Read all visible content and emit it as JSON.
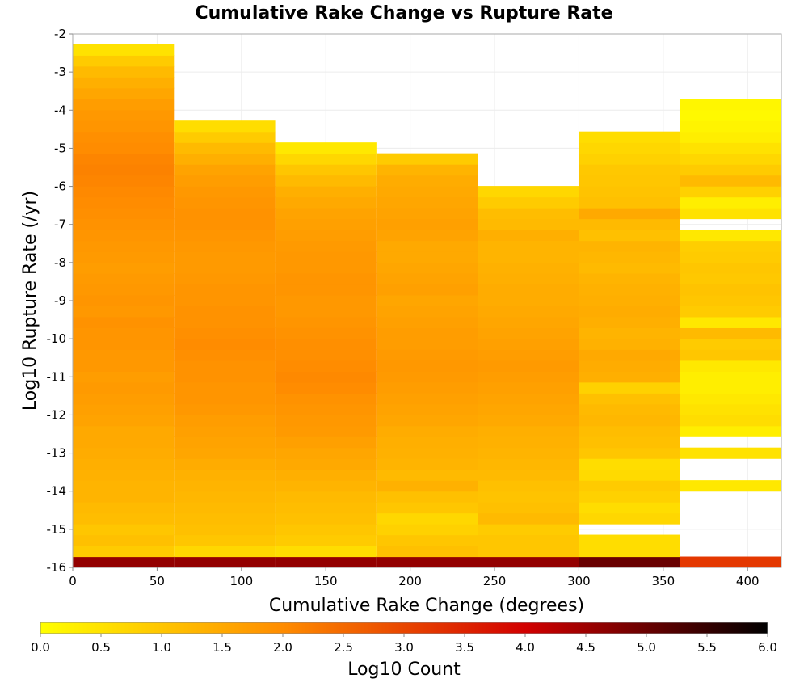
{
  "chart_data": {
    "type": "heatmap",
    "title": "Cumulative Rake Change vs Rupture Rate",
    "xlabel": "Cumulative Rake Change (degrees)",
    "ylabel": "Log10 Rupture Rate (/yr)",
    "xlim": [
      0,
      420
    ],
    "ylim": [
      -16,
      -2
    ],
    "x_ticks": [
      0,
      50,
      100,
      150,
      200,
      250,
      300,
      350,
      400
    ],
    "y_ticks": [
      -2,
      -3,
      -4,
      -5,
      -6,
      -7,
      -8,
      -9,
      -10,
      -11,
      -12,
      -13,
      -14,
      -15,
      -16
    ],
    "grid": true,
    "cell_width_deg": 60,
    "cell_height_log10": 0.286,
    "colorbar": {
      "label": "Log10 Count",
      "range": [
        0.0,
        6.0
      ],
      "ticks": [
        0.0,
        0.5,
        1.0,
        1.5,
        2.0,
        2.5,
        3.0,
        3.5,
        4.0,
        4.5,
        5.0,
        5.5,
        6.0
      ],
      "colors": [
        "#ffff00",
        "#ff8c00",
        "#d20000",
        "#000000"
      ]
    },
    "columns": [
      {
        "x_start": 0,
        "y_start": -16,
        "values": [
          4.6,
          0.9,
          1.1,
          1.0,
          1.15,
          1.2,
          1.3,
          1.3,
          1.35,
          1.4,
          1.45,
          1.5,
          1.5,
          1.6,
          1.65,
          1.7,
          1.75,
          1.7,
          1.8,
          1.8,
          1.85,
          1.85,
          1.9,
          1.8,
          1.85,
          1.8,
          1.75,
          1.7,
          1.75,
          1.8,
          1.85,
          1.9,
          1.95,
          2.0,
          2.05,
          2.1,
          2.15,
          2.1,
          2.0,
          1.95,
          1.85,
          1.8,
          1.7,
          1.55,
          1.4,
          1.2,
          0.9,
          0.5
        ]
      },
      {
        "x_start": 60,
        "y_start": -16,
        "values": [
          4.6,
          0.7,
          1.0,
          1.1,
          1.15,
          1.2,
          1.25,
          1.3,
          1.35,
          1.45,
          1.55,
          1.6,
          1.65,
          1.7,
          1.8,
          1.85,
          1.85,
          1.9,
          1.9,
          1.95,
          2.0,
          1.95,
          1.9,
          1.9,
          1.85,
          1.85,
          1.8,
          1.75,
          1.75,
          1.8,
          1.85,
          1.9,
          1.9,
          1.85,
          1.8,
          1.7,
          1.6,
          1.4,
          1.2,
          0.9,
          0.6
        ]
      },
      {
        "x_start": 120,
        "y_start": -16,
        "values": [
          4.6,
          0.6,
          0.9,
          1.0,
          1.1,
          1.15,
          1.2,
          1.3,
          1.4,
          1.5,
          1.55,
          1.65,
          1.75,
          1.8,
          1.85,
          1.9,
          2.0,
          2.05,
          2.0,
          1.95,
          1.95,
          1.9,
          1.85,
          1.8,
          1.8,
          1.85,
          1.85,
          1.8,
          1.8,
          1.75,
          1.7,
          1.65,
          1.6,
          1.5,
          1.4,
          1.2,
          1.0,
          0.7,
          0.4
        ]
      },
      {
        "x_start": 180,
        "y_start": -16,
        "values": [
          4.6,
          1.1,
          1.0,
          0.8,
          0.7,
          1.0,
          1.1,
          1.35,
          1.2,
          1.3,
          1.35,
          1.4,
          1.45,
          1.55,
          1.6,
          1.65,
          1.7,
          1.75,
          1.8,
          1.75,
          1.7,
          1.7,
          1.65,
          1.6,
          1.55,
          1.65,
          1.6,
          1.55,
          1.5,
          1.5,
          1.6,
          1.65,
          1.6,
          1.55,
          1.5,
          1.45,
          1.3,
          0.9
        ]
      },
      {
        "x_start": 240,
        "y_start": -16,
        "values": [
          4.6,
          1.0,
          1.0,
          0.9,
          1.2,
          1.1,
          1.05,
          1.1,
          1.2,
          1.25,
          1.3,
          1.35,
          1.4,
          1.5,
          1.55,
          1.6,
          1.65,
          1.7,
          1.75,
          1.7,
          1.65,
          1.6,
          1.55,
          1.5,
          1.45,
          1.45,
          1.4,
          1.35,
          1.3,
          1.3,
          1.4,
          1.2,
          1.15,
          0.9,
          0.7
        ]
      },
      {
        "x_start": 300,
        "y_start": -16,
        "values": [
          5.0,
          0.6,
          0.6,
          null,
          0.7,
          0.6,
          0.8,
          0.9,
          0.65,
          0.6,
          1.0,
          1.1,
          1.15,
          1.25,
          1.2,
          1.1,
          0.8,
          1.4,
          1.45,
          1.5,
          1.35,
          1.3,
          1.4,
          1.45,
          1.4,
          1.35,
          1.3,
          1.2,
          1.25,
          1.3,
          1.1,
          1.2,
          1.5,
          1.1,
          1.05,
          1.0,
          0.95,
          0.8,
          0.7,
          0.6
        ]
      },
      {
        "x_start": 360,
        "y_start": -16,
        "values": [
          3.2,
          null,
          null,
          null,
          null,
          null,
          null,
          0.4,
          null,
          null,
          0.5,
          null,
          0.3,
          0.6,
          0.5,
          0.4,
          0.3,
          0.3,
          0.4,
          1.0,
          0.9,
          1.2,
          0.4,
          0.9,
          1.0,
          1.05,
          0.95,
          1.0,
          0.9,
          0.85,
          0.4,
          null,
          0.5,
          0.3,
          0.8,
          1.2,
          0.9,
          0.7,
          0.5,
          0.3,
          0.2,
          0.1,
          0.15
        ]
      }
    ]
  }
}
